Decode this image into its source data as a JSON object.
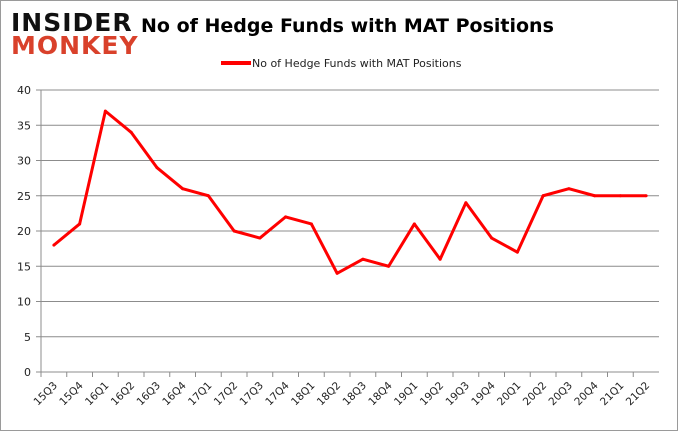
{
  "logo": {
    "line1": "INSIDER",
    "line2": "MONKEY"
  },
  "chart_data": {
    "type": "line",
    "title": "No of Hedge Funds with MAT Positions",
    "legend": "top-center",
    "grid": true,
    "ylim": [
      0,
      40
    ],
    "yticks": [
      0,
      5,
      10,
      15,
      20,
      25,
      30,
      35,
      40
    ],
    "categories": [
      "15Q3",
      "15Q4",
      "16Q1",
      "16Q2",
      "16Q3",
      "16Q4",
      "17Q1",
      "17Q2",
      "17Q3",
      "17Q4",
      "18Q1",
      "18Q2",
      "18Q3",
      "18Q4",
      "19Q1",
      "19Q2",
      "19Q3",
      "19Q4",
      "20Q1",
      "20Q2",
      "20Q3",
      "20Q4",
      "21Q1",
      "21Q2"
    ],
    "series": [
      {
        "name": "No of Hedge Funds with MAT Positions",
        "color": "#ff0000",
        "values": [
          18,
          21,
          37,
          34,
          29,
          26,
          25,
          20,
          19,
          22,
          21,
          14,
          16,
          15,
          21,
          16,
          24,
          19,
          17,
          25,
          26,
          25,
          25,
          25
        ]
      }
    ]
  }
}
